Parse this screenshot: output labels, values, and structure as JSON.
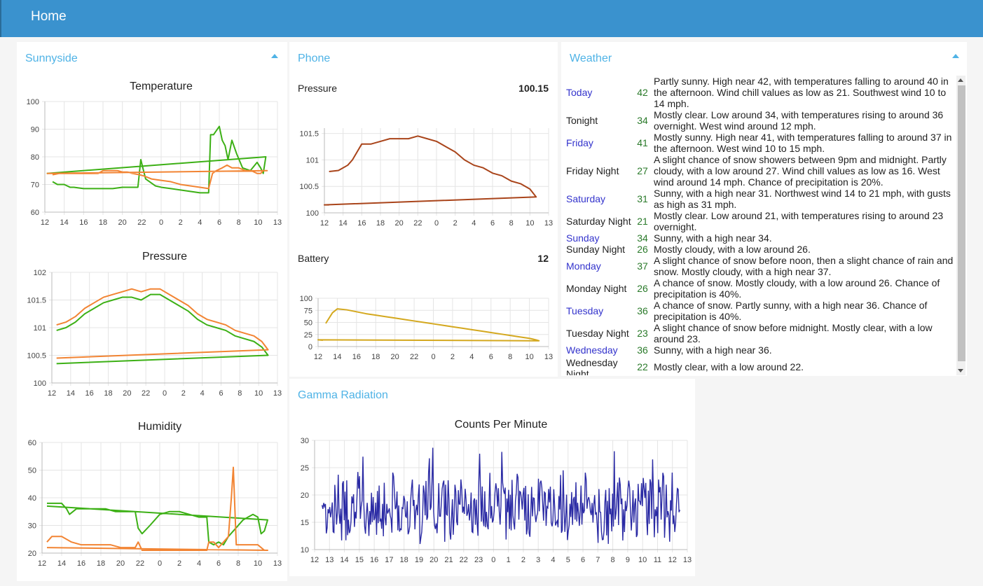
{
  "header": {
    "title": "Home"
  },
  "sunnyside": {
    "title": "Sunnyside",
    "temperature": {
      "title": "Temperature",
      "x_ticks": [
        "12",
        "14",
        "16",
        "18",
        "20",
        "22",
        "0",
        "2",
        "4",
        "6",
        "8",
        "10",
        "13"
      ],
      "y_ticks": [
        "60",
        "70",
        "80",
        "90",
        "100"
      ],
      "ylim": [
        60,
        100
      ],
      "colors": [
        "#3cb015",
        "#f28433"
      ],
      "series": [
        {
          "x": [
            12.8,
            13.3,
            14,
            14.6,
            15,
            16,
            17,
            18,
            19,
            20,
            21,
            21.6,
            21.9,
            22.4,
            23.4,
            0,
            1,
            2,
            3,
            4,
            4.9,
            5.1,
            5.4,
            6,
            6.3,
            6.6,
            6.9,
            7.3,
            7.8,
            8.4,
            9.2,
            9.9,
            10.4,
            10.8,
            11.2,
            12.2
          ],
          "y": [
            71,
            70,
            70,
            69,
            69,
            68.5,
            68.5,
            68.5,
            68.5,
            69,
            69,
            69,
            79,
            72,
            69.5,
            69,
            68.5,
            68,
            67.5,
            67,
            67,
            88,
            88,
            91,
            86,
            84,
            79,
            86,
            81,
            76,
            75,
            78,
            76,
            74,
            80,
            74
          ]
        },
        {
          "x": [
            12.8,
            13.5,
            14,
            14.6,
            15,
            15.8,
            16.5,
            17.5,
            18,
            18.5,
            19.5,
            20,
            20.5,
            21,
            21.8,
            22.3,
            23,
            0,
            1,
            2,
            3,
            4,
            4.9,
            5.3,
            5.7,
            6.3,
            6.8,
            7.3,
            8,
            8.7,
            9.3,
            9.9,
            10.4,
            10.8,
            11.4,
            12.2
          ],
          "y": [
            73.5,
            74,
            74,
            74,
            74,
            74,
            74,
            74,
            75,
            75,
            75,
            74.5,
            74.5,
            74,
            73.5,
            73,
            72,
            71.5,
            71,
            70,
            69.5,
            69,
            68.5,
            74,
            75,
            76,
            77,
            76,
            76,
            75,
            75,
            74,
            74,
            75,
            75,
            74
          ]
        }
      ]
    },
    "pressure": {
      "title": "Pressure",
      "x_ticks": [
        "12",
        "14",
        "16",
        "18",
        "20",
        "22",
        "0",
        "2",
        "4",
        "6",
        "8",
        "10",
        "13"
      ],
      "y_ticks": [
        "100",
        "100.5",
        "101",
        "101.5",
        "102"
      ],
      "ylim": [
        100,
        102
      ],
      "colors": [
        "#3cb015",
        "#f28433"
      ],
      "series": [
        {
          "x": [
            12.5,
            13.5,
            14.5,
            15.5,
            16.5,
            17.5,
            18.5,
            19.5,
            20.5,
            21.5,
            22.5,
            23.5,
            0.5,
            1.5,
            2.5,
            3.5,
            4.5,
            5.5,
            6.5,
            7.5,
            8.5,
            9.5,
            10.5,
            11.5,
            12.5
          ],
          "y": [
            100.95,
            101,
            101.1,
            101.25,
            101.35,
            101.45,
            101.5,
            101.55,
            101.55,
            101.5,
            101.6,
            101.6,
            101.5,
            101.4,
            101.3,
            101.15,
            101.05,
            101,
            100.95,
            100.85,
            100.8,
            100.75,
            100.65,
            100.5,
            100.35
          ]
        },
        {
          "x": [
            12.5,
            13.5,
            14.5,
            15.5,
            16.5,
            17.5,
            18.5,
            19.5,
            20.5,
            21.5,
            22.5,
            23.5,
            0.5,
            1.5,
            2.5,
            3.5,
            4.5,
            5.5,
            6.5,
            7.5,
            8.5,
            9.5,
            10.5,
            11.5,
            12.5
          ],
          "y": [
            101.05,
            101.1,
            101.2,
            101.35,
            101.45,
            101.55,
            101.6,
            101.65,
            101.7,
            101.65,
            101.7,
            101.7,
            101.6,
            101.5,
            101.4,
            101.25,
            101.15,
            101.1,
            101.05,
            100.95,
            100.9,
            100.85,
            100.75,
            100.6,
            100.45
          ]
        }
      ]
    },
    "humidity": {
      "title": "Humidity",
      "x_ticks": [
        "12",
        "14",
        "16",
        "18",
        "20",
        "22",
        "0",
        "2",
        "4",
        "6",
        "8",
        "10",
        "13"
      ],
      "y_ticks": [
        "20",
        "30",
        "40",
        "50",
        "60"
      ],
      "ylim": [
        20,
        60
      ],
      "colors": [
        "#3cb015",
        "#f28433"
      ],
      "series": [
        {
          "x": [
            12.5,
            13.3,
            14,
            14.5,
            14.8,
            15.5,
            16.5,
            17.5,
            18.5,
            19.5,
            20.5,
            21.5,
            21.8,
            22.2,
            23,
            0,
            1,
            2,
            3,
            4,
            4.8,
            5,
            5.5,
            6,
            6.5,
            7,
            7.5,
            8,
            8.5,
            9,
            9.5,
            10,
            10.5,
            11,
            11.5,
            12.5
          ],
          "y": [
            38,
            38,
            38,
            36,
            34,
            36,
            36,
            36,
            36,
            35,
            35,
            35,
            29,
            27,
            30,
            34,
            35,
            35,
            34,
            33,
            33,
            24,
            23,
            24,
            23,
            26,
            28,
            30,
            32,
            33,
            34,
            33,
            27,
            28,
            32,
            37
          ]
        },
        {
          "x": [
            12.5,
            13,
            14,
            15,
            16,
            17,
            18,
            19,
            20,
            21,
            21.5,
            21.8,
            22.2,
            22.5,
            23,
            0,
            1,
            2,
            3,
            4,
            4.8,
            5,
            5.5,
            6,
            6.5,
            7,
            7.3,
            7.5,
            7.8,
            8.2,
            9,
            10,
            11,
            11.5,
            12.5
          ],
          "y": [
            24,
            26,
            26,
            24,
            23,
            23,
            23,
            23,
            22,
            22,
            22,
            24,
            21,
            21,
            21,
            21,
            21,
            21,
            21,
            21,
            21,
            24,
            24,
            22,
            24,
            26,
            40,
            51,
            23,
            23,
            23,
            23,
            21,
            21,
            22
          ]
        }
      ]
    }
  },
  "phone": {
    "title": "Phone",
    "pressure": {
      "label": "Pressure",
      "value": "100.15",
      "x_ticks": [
        "12",
        "14",
        "16",
        "18",
        "20",
        "22",
        "0",
        "2",
        "4",
        "6",
        "8",
        "10",
        "13"
      ],
      "y_ticks": [
        "100",
        "100.5",
        "101",
        "101.5"
      ],
      "ylim": [
        100,
        101.6
      ],
      "colors": [
        "#a9441a"
      ],
      "series": [
        {
          "x": [
            12.5,
            13.5,
            14,
            14.5,
            15,
            15.5,
            16,
            17,
            18,
            19,
            20,
            21,
            22,
            23,
            0,
            1,
            2,
            3,
            4,
            5,
            6,
            7,
            8,
            9,
            10,
            11,
            12,
            12.5
          ],
          "y": [
            100.78,
            100.8,
            100.85,
            100.9,
            101,
            101.15,
            101.3,
            101.3,
            101.35,
            101.4,
            101.4,
            101.4,
            101.45,
            101.4,
            101.35,
            101.25,
            101.15,
            101,
            100.9,
            100.85,
            100.75,
            100.7,
            100.6,
            100.55,
            100.45,
            100.3,
            100.15,
            100.15
          ]
        }
      ]
    },
    "battery": {
      "label": "Battery",
      "value": "12",
      "x_ticks": [
        "12",
        "14",
        "16",
        "18",
        "20",
        "22",
        "0",
        "2",
        "4",
        "6",
        "8",
        "10",
        "13"
      ],
      "y_ticks": [
        "0",
        "25",
        "50",
        "75",
        "100"
      ],
      "ylim": [
        0,
        100
      ],
      "colors": [
        "#d4a81e"
      ],
      "series": [
        {
          "x": [
            12.8,
            13.5,
            14,
            15,
            16,
            17,
            18,
            19,
            20,
            21,
            22,
            23,
            0,
            1,
            2,
            3,
            4,
            5,
            6,
            7,
            8,
            9,
            10,
            11,
            11.5,
            12,
            12.5
          ],
          "y": [
            48,
            70,
            78,
            76,
            72,
            68,
            65,
            62,
            59,
            56,
            53,
            50,
            47,
            44,
            41,
            38,
            35,
            32,
            29,
            26,
            23,
            20,
            17,
            14,
            12,
            14,
            13
          ]
        }
      ]
    }
  },
  "gamma": {
    "title": "Gamma Radiation",
    "chart_title": "Counts Per Minute",
    "x_ticks": [
      "12",
      "13",
      "14",
      "15",
      "16",
      "17",
      "18",
      "19",
      "20",
      "21",
      "22",
      "23",
      "0",
      "1",
      "2",
      "3",
      "4",
      "5",
      "6",
      "7",
      "8",
      "9",
      "10",
      "11",
      "12",
      "13"
    ],
    "y_ticks": [
      "10",
      "15",
      "20",
      "25",
      "30"
    ],
    "ylim": [
      10,
      30
    ],
    "colors": [
      "#2a2aa4"
    ],
    "series": [
      {
        "mean": 18,
        "range": [
          11,
          29
        ],
        "x_start": 12.5,
        "x_end": 12.5
      }
    ]
  },
  "weather": {
    "title": "Weather",
    "day_color": "#3333cc",
    "rows": [
      {
        "day": "Today",
        "temp": "42",
        "desc": "Partly sunny. High near 42, with temperatures falling to around 40 in the afternoon. Wind chill values as low as 21. Southwest wind 10 to 14 mph.",
        "daytime": true
      },
      {
        "day": "Tonight",
        "temp": "34",
        "desc": "Mostly clear. Low around 34, with temperatures rising to around 36 overnight. West wind around 12 mph.",
        "daytime": false
      },
      {
        "day": "Friday",
        "temp": "41",
        "desc": "Mostly sunny. High near 41, with temperatures falling to around 37 in the afternoon. West wind 10 to 15 mph.",
        "daytime": true
      },
      {
        "day": "Friday Night",
        "temp": "27",
        "desc": "A slight chance of snow showers between 9pm and midnight. Partly cloudy, with a low around 27. Wind chill values as low as 16. West wind around 14 mph. Chance of precipitation is 20%.",
        "daytime": false
      },
      {
        "day": "Saturday",
        "temp": "31",
        "desc": "Sunny, with a high near 31. Northwest wind 14 to 21 mph, with gusts as high as 31 mph.",
        "daytime": true
      },
      {
        "day": "Saturday Night",
        "temp": "21",
        "desc": "Mostly clear. Low around 21, with temperatures rising to around 23 overnight.",
        "daytime": false
      },
      {
        "day": "Sunday",
        "temp": "34",
        "desc": "Sunny, with a high near 34.",
        "daytime": true
      },
      {
        "day": "Sunday Night",
        "temp": "26",
        "desc": "Mostly cloudy, with a low around 26.",
        "daytime": false
      },
      {
        "day": "Monday",
        "temp": "37",
        "desc": "A slight chance of snow before noon, then a slight chance of rain and snow. Mostly cloudy, with a high near 37.",
        "daytime": true
      },
      {
        "day": "Monday Night",
        "temp": "26",
        "desc": "A chance of snow. Mostly cloudy, with a low around 26. Chance of precipitation is 40%.",
        "daytime": false
      },
      {
        "day": "Tuesday",
        "temp": "36",
        "desc": "A chance of snow. Partly sunny, with a high near 36. Chance of precipitation is 40%.",
        "daytime": true
      },
      {
        "day": "Tuesday Night",
        "temp": "23",
        "desc": "A slight chance of snow before midnight. Mostly clear, with a low around 23.",
        "daytime": false
      },
      {
        "day": "Wednesday",
        "temp": "36",
        "desc": "Sunny, with a high near 36.",
        "daytime": true
      },
      {
        "day": "Wednesday Night",
        "temp": "22",
        "desc": "Mostly clear, with a low around 22.",
        "daytime": false
      }
    ]
  }
}
